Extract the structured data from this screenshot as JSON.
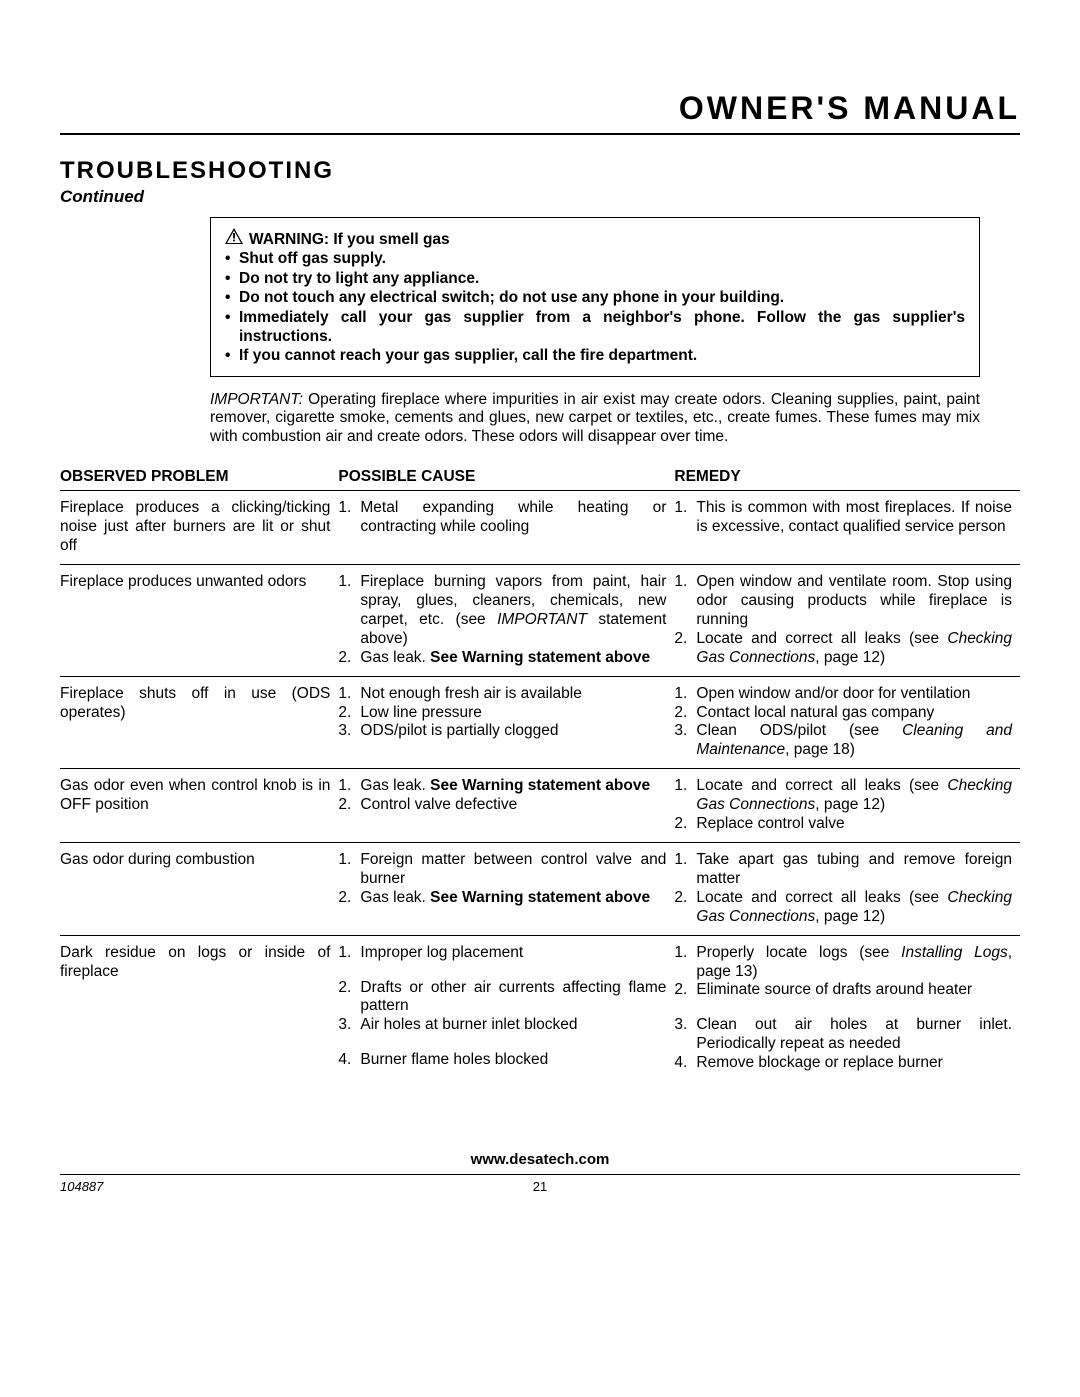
{
  "header": {
    "title": "OWNER'S MANUAL"
  },
  "section": {
    "title": "TROUBLESHOOTING",
    "continued": "Continued"
  },
  "warning": {
    "lead": "WARNING: If you smell gas",
    "bullets": [
      "Shut off gas supply.",
      "Do not try to light any appliance.",
      "Do not touch any electrical switch; do not use any phone in your building.",
      "Immediately call your gas supplier from a neighbor's phone. Follow the gas supplier's instructions.",
      "If you cannot reach your gas supplier, call the fire department."
    ]
  },
  "important": {
    "lead": "IMPORTANT:",
    "text": " Operating fireplace where impurities in air exist may create odors. Cleaning supplies, paint, paint remover, cigarette smoke, cements and glues, new carpet or textiles, etc., create fumes. These fumes may mix with combustion air and create odors. These odors will disappear over time."
  },
  "table": {
    "headers": {
      "problem": "OBSERVED PROBLEM",
      "cause": "POSSIBLE CAUSE",
      "remedy": "REMEDY"
    },
    "rows": [
      {
        "problem": "Fireplace produces a clicking/ticking noise just after burners are lit or shut off",
        "cause_html": "<li><span class=\"n\">1.</span>Metal expanding while heating or contracting while cooling</li>",
        "remedy_html": "<li><span class=\"n\">1.</span>This is common with most fireplaces. If noise is excessive, contact qualified service person</li>"
      },
      {
        "problem": "Fireplace produces unwanted odors",
        "cause_html": "<li><span class=\"n\">1.</span>Fireplace burning vapors from paint, hair spray, glues, cleaners, chemicals, new carpet, etc. (see <span class=\"i\">IMPORTANT</span> statement above)</li><li><span class=\"n\">2.</span>Gas leak. <span class=\"b\">See Warning statement above</span></li>",
        "remedy_html": "<li><span class=\"n\">1.</span>Open window and ventilate room. Stop using odor causing products while fireplace is running</li><li><span class=\"n\">2.</span>Locate and correct all leaks (see <span class=\"i\">Checking Gas Connections</span>, page 12)</li>"
      },
      {
        "problem": "Fireplace shuts off in use (ODS operates)",
        "cause_html": "<li><span class=\"n\">1.</span>Not enough fresh air is available</li><li><span class=\"n\">2.</span>Low line pressure</li><li><span class=\"n\">3.</span>ODS/pilot is partially clogged</li>",
        "remedy_html": "<li><span class=\"n\">1.</span>Open window and/or door for ventilation</li><li><span class=\"n\">2.</span>Contact local natural gas company</li><li><span class=\"n\">3.</span>Clean ODS/pilot (see <span class=\"i\">Cleaning and Maintenance</span>, page 18)</li>"
      },
      {
        "problem": "Gas odor even when control knob is in OFF position",
        "cause_html": "<li><span class=\"n\">1.</span>Gas leak. <span class=\"b\">See Warning statement above</span></li><li><span class=\"n\">2.</span>Control valve defective</li>",
        "remedy_html": "<li><span class=\"n\">1.</span>Locate and correct all leaks (see <span class=\"i\">Checking Gas Connections</span>, page 12)</li><li><span class=\"n\">2.</span>Replace control valve</li>"
      },
      {
        "problem": "Gas odor during combustion",
        "cause_html": "<li><span class=\"n\">1.</span>Foreign matter between control valve and burner</li><li><span class=\"n\">2.</span>Gas leak. <span class=\"b\">See Warning statement above</span></li>",
        "remedy_html": "<li><span class=\"n\">1.</span>Take apart gas tubing and remove foreign matter</li><li><span class=\"n\">2.</span>Locate and correct all leaks (see <span class=\"i\">Checking Gas Connections</span>, page 12)</li>"
      },
      {
        "problem": "Dark residue on logs or inside of fireplace",
        "cause_html": "<li><span class=\"n\">1.</span>Improper log placement</li><li style=\"margin-top:16px\"><span class=\"n\">2.</span>Drafts or other air currents affecting flame pattern</li><li><span class=\"n\">3.</span>Air holes at burner inlet blocked</li><li style=\"margin-top:16px\"><span class=\"n\">4.</span>Burner flame holes blocked</li>",
        "remedy_html": "<li><span class=\"n\">1.</span>Properly locate logs (see <span class=\"i\">Installing Logs</span>, page 13)</li><li><span class=\"n\">2.</span>Eliminate source of drafts around heater</li><li style=\"margin-top:16px\"><span class=\"n\">3.</span>Clean out air holes at burner inlet. Periodically repeat as needed</li><li><span class=\"n\">4.</span>Remove blockage or replace burner</li>"
      }
    ]
  },
  "footer": {
    "url": "www.desatech.com",
    "docid": "104887",
    "page": "21"
  }
}
